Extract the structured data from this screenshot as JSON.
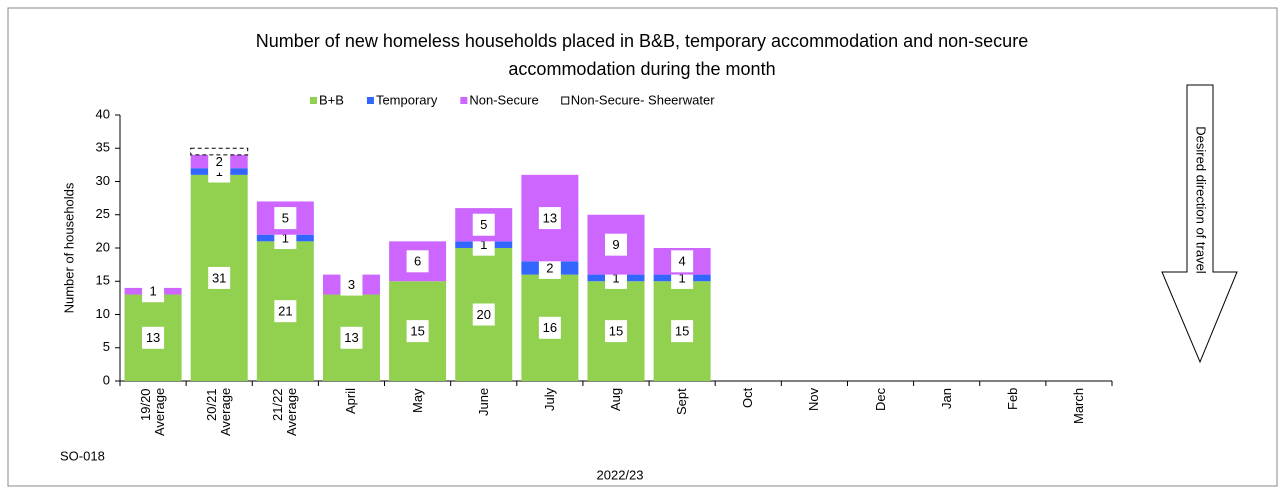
{
  "chart_data": {
    "type": "stacked_bar",
    "title": "Number of new homeless households placed in B&B, temporary accommodation and non-secure accommodation during the month",
    "ylabel": "Number of households",
    "xlabel": "2022/23",
    "code": "SO-018",
    "annotation": "Desired direction of travel",
    "categories": [
      "19/20 Average",
      "20/21 Average",
      "21/22 Average",
      "April",
      "May",
      "June",
      "July",
      "Aug",
      "Sept",
      "Oct",
      "Nov",
      "Dec",
      "Jan",
      "Feb",
      "March"
    ],
    "series": [
      {
        "name": "B+B",
        "color": "#92d050",
        "values": [
          13,
          31,
          21,
          13,
          15,
          20,
          16,
          15,
          15,
          null,
          null,
          null,
          null,
          null,
          null
        ]
      },
      {
        "name": "Temporary",
        "color": "#3366ff",
        "values": [
          0,
          1,
          1,
          0,
          0,
          1,
          2,
          1,
          1,
          null,
          null,
          null,
          null,
          null,
          null
        ]
      },
      {
        "name": "Non-Secure",
        "color": "#cc66ff",
        "values": [
          1,
          2,
          5,
          3,
          6,
          5,
          13,
          9,
          4,
          null,
          null,
          null,
          null,
          null,
          null
        ]
      },
      {
        "name": "Non-Secure- Sheerwater",
        "color": "#ffffff",
        "values": [
          null,
          1,
          null,
          null,
          null,
          null,
          null,
          null,
          null,
          null,
          null,
          null,
          null,
          null,
          null
        ]
      }
    ],
    "ylim": [
      0,
      40
    ],
    "yticks": [
      0,
      5,
      10,
      15,
      20,
      25,
      30,
      35,
      40
    ],
    "grid": false
  }
}
